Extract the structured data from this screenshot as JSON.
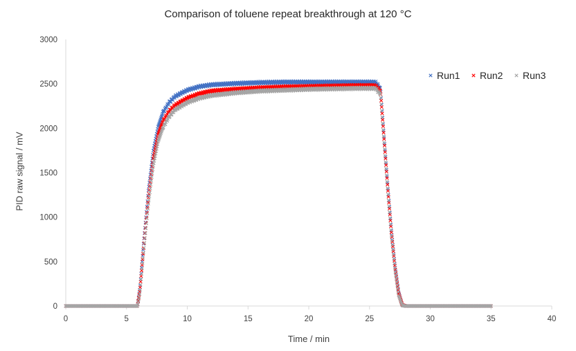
{
  "chart_data": {
    "type": "scatter",
    "title": "Comparison of toluene repeat breakthrough at 120 °C",
    "xlabel": "Time / min",
    "ylabel": "PID raw signal / mV",
    "xlim": [
      0,
      40
    ],
    "ylim": [
      0,
      3000
    ],
    "xticks": [
      0,
      5,
      10,
      15,
      20,
      25,
      30,
      35,
      40
    ],
    "yticks": [
      0,
      500,
      1000,
      1500,
      2000,
      2500,
      3000
    ],
    "grid": false,
    "legend_position": "top-right",
    "marker": "x",
    "series": [
      {
        "name": "Run1",
        "color": "#4472C4",
        "x": [
          0,
          2,
          4,
          5.9,
          6.1,
          6.4,
          6.8,
          7.2,
          7.6,
          8.0,
          8.5,
          9.0,
          10,
          11,
          12,
          14,
          16,
          18,
          20,
          22,
          24,
          25.5,
          25.9,
          26.2,
          26.5,
          26.8,
          27.1,
          27.4,
          27.7,
          28.0,
          30,
          32,
          35
        ],
        "y": [
          0,
          0,
          0,
          0,
          200,
          700,
          1300,
          1750,
          2020,
          2180,
          2290,
          2360,
          2430,
          2470,
          2490,
          2505,
          2515,
          2520,
          2520,
          2520,
          2520,
          2520,
          2450,
          1900,
          1350,
          850,
          450,
          150,
          10,
          0,
          0,
          0,
          0
        ]
      },
      {
        "name": "Run2",
        "color": "#FF0000",
        "x": [
          0,
          2,
          4,
          5.9,
          6.1,
          6.4,
          6.8,
          7.2,
          7.6,
          8.0,
          8.5,
          9.0,
          10,
          11,
          12,
          14,
          16,
          18,
          20,
          22,
          24,
          25.5,
          25.9,
          26.2,
          26.5,
          26.8,
          27.1,
          27.4,
          27.7,
          28.0,
          30,
          32,
          35
        ],
        "y": [
          0,
          0,
          0,
          0,
          180,
          650,
          1220,
          1660,
          1930,
          2080,
          2190,
          2260,
          2340,
          2390,
          2420,
          2440,
          2455,
          2465,
          2470,
          2475,
          2480,
          2480,
          2420,
          1880,
          1330,
          830,
          430,
          140,
          10,
          0,
          0,
          0,
          0
        ]
      },
      {
        "name": "Run3",
        "color": "#A5A5A5",
        "x": [
          0,
          2,
          4,
          5.9,
          6.1,
          6.4,
          6.8,
          7.2,
          7.6,
          8.0,
          8.5,
          9.0,
          10,
          11,
          12,
          14,
          16,
          18,
          20,
          22,
          24,
          25.5,
          25.9,
          26.2,
          26.5,
          26.8,
          27.1,
          27.4,
          27.7,
          28.0,
          30,
          32,
          35
        ],
        "y": [
          0,
          0,
          0,
          0,
          150,
          600,
          1150,
          1580,
          1850,
          2010,
          2130,
          2210,
          2290,
          2340,
          2370,
          2400,
          2420,
          2430,
          2440,
          2445,
          2450,
          2450,
          2380,
          1840,
          1290,
          790,
          400,
          120,
          5,
          0,
          0,
          0,
          0
        ]
      }
    ]
  }
}
